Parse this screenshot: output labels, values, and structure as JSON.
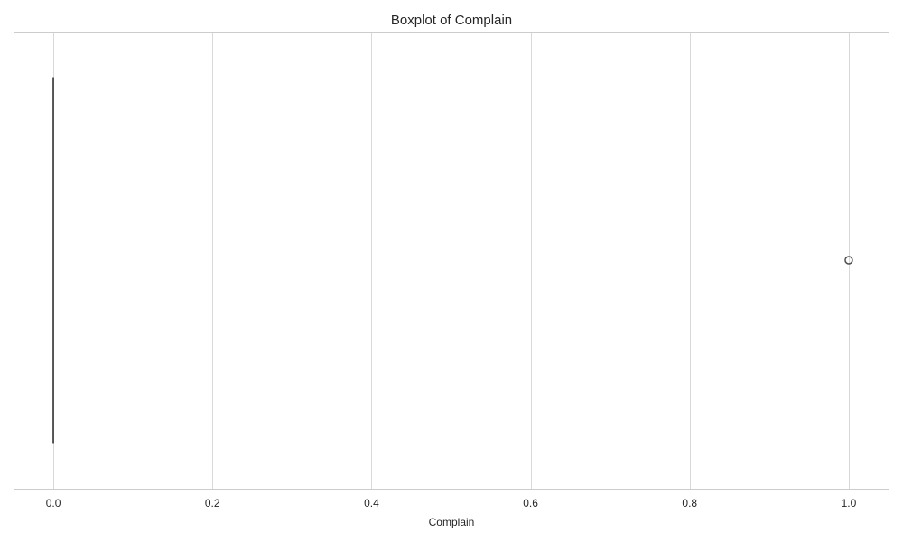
{
  "chart_data": {
    "type": "box",
    "title": "Boxplot of Complain",
    "xlabel": "Complain",
    "ylabel": "",
    "orientation": "horizontal",
    "xlim": [
      -0.05,
      1.05
    ],
    "xticks": [
      0.0,
      0.2,
      0.4,
      0.6,
      0.8,
      1.0
    ],
    "xtick_labels": [
      "0.0",
      "0.2",
      "0.4",
      "0.6",
      "0.8",
      "1.0"
    ],
    "grid": "vertical",
    "boxes": [
      {
        "min": 0.0,
        "q1": 0.0,
        "median": 0.0,
        "q3": 0.0,
        "max": 0.0,
        "outliers": [
          1.0
        ]
      }
    ]
  },
  "colors": {
    "background": "#ffffff",
    "grid": "#d9d9d9",
    "spine": "#cccccc",
    "box_line": "#4d4d4d",
    "text": "#262626"
  }
}
